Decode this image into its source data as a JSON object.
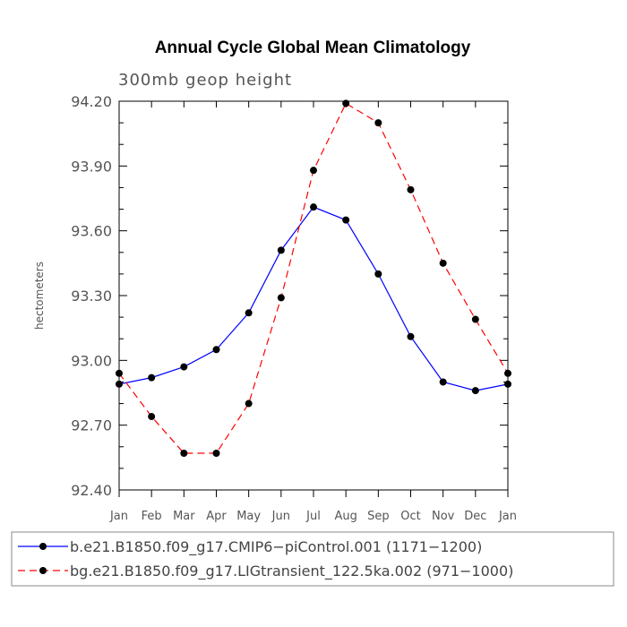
{
  "chart_data": {
    "type": "line",
    "title": "Annual Cycle Global Mean Climatology",
    "subtitle": "300mb geop height",
    "xlabel": "",
    "ylabel": "hectometers",
    "categories": [
      "Jan",
      "Feb",
      "Mar",
      "Apr",
      "May",
      "Jun",
      "Jul",
      "Aug",
      "Sep",
      "Oct",
      "Nov",
      "Dec",
      "Jan"
    ],
    "ylim": [
      92.4,
      94.2
    ],
    "yticks": [
      "92.40",
      "92.70",
      "93.00",
      "93.30",
      "93.60",
      "93.90",
      "94.20"
    ],
    "grid": false,
    "legend_position": "bottom",
    "series": [
      {
        "name": "b.e21.B1850.f09_g17.CMIP6−piControl.001 (1171−1200)",
        "color": "#0000ff",
        "line_style": "solid",
        "values": [
          92.89,
          92.92,
          92.97,
          93.05,
          93.22,
          93.51,
          93.71,
          93.65,
          93.4,
          93.11,
          92.9,
          92.86,
          92.89
        ]
      },
      {
        "name": "bg.e21.B1850.f09_g17.LIGtransient_122.5ka.002 (971−1000)",
        "color": "#ff0000",
        "line_style": "dashed",
        "values": [
          92.94,
          92.74,
          92.57,
          92.57,
          92.8,
          93.29,
          93.88,
          94.19,
          94.1,
          93.79,
          93.45,
          93.19,
          92.94
        ]
      }
    ]
  }
}
